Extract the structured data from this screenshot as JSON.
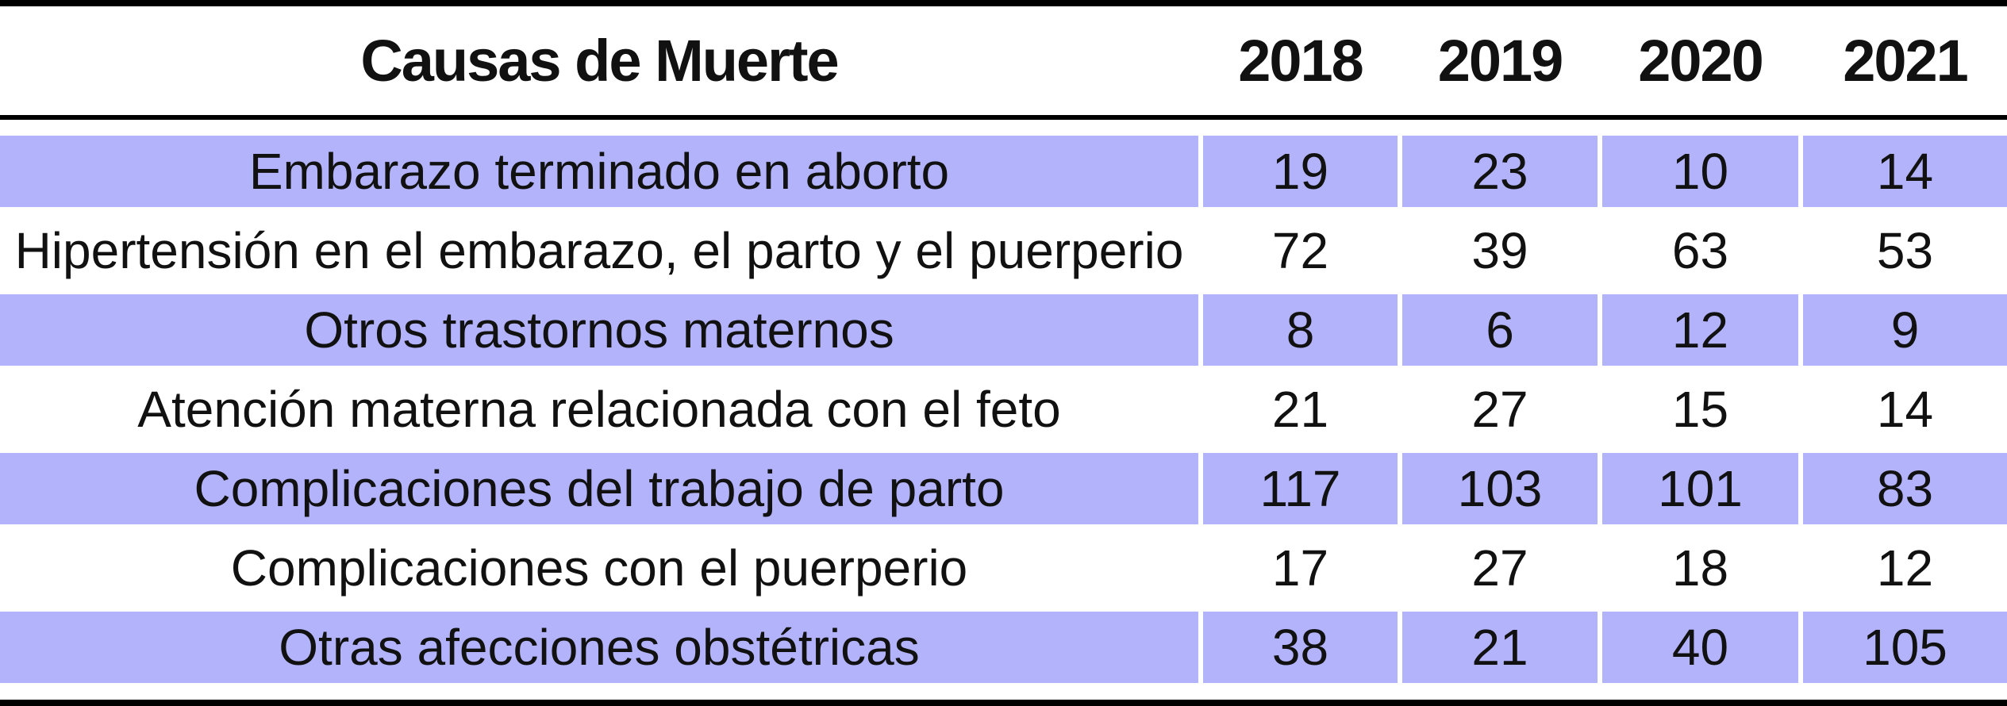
{
  "table": {
    "headers": {
      "cause": "Causas de Muerte",
      "years": [
        "2018",
        "2019",
        "2020",
        "2021"
      ]
    },
    "rows": [
      {
        "cause": "Embarazo terminado en aborto",
        "values": [
          "19",
          "23",
          "10",
          "14"
        ]
      },
      {
        "cause": "Hipertensión en el embarazo, el parto y el puerperio",
        "values": [
          "72",
          "39",
          "63",
          "53"
        ]
      },
      {
        "cause": "Otros trastornos maternos",
        "values": [
          "8",
          "6",
          "12",
          "9"
        ]
      },
      {
        "cause": "Atención materna relacionada con el feto",
        "values": [
          "21",
          "27",
          "15",
          "14"
        ]
      },
      {
        "cause": "Complicaciones del trabajo de parto",
        "values": [
          "117",
          "103",
          "101",
          "83"
        ]
      },
      {
        "cause": "Complicaciones con el puerperio",
        "values": [
          "17",
          "27",
          "18",
          "12"
        ]
      },
      {
        "cause": "Otras afecciones obstétricas",
        "values": [
          "38",
          "21",
          "40",
          "105"
        ]
      }
    ]
  },
  "colors": {
    "shaded_row": "#b3b3fb",
    "rule": "#000000"
  }
}
